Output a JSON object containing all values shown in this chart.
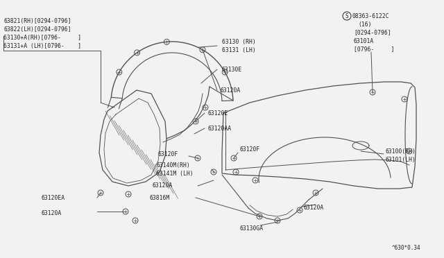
{
  "bg_color": "#f2f2f2",
  "line_color": "#505050",
  "text_color": "#202020",
  "diagram_ref": "^630*0.34",
  "top_left_lines": [
    "63821(RH)[0294-0796]",
    "63822(LH)[0294-0796]",
    "63130+A(RH)[0796-     ]",
    "63131+A (LH)[0796-    ]"
  ],
  "top_right_lines": [
    "S08363-6122C",
    "(16)",
    "[0294-0796]",
    "63101A",
    "[0796-     ]"
  ]
}
